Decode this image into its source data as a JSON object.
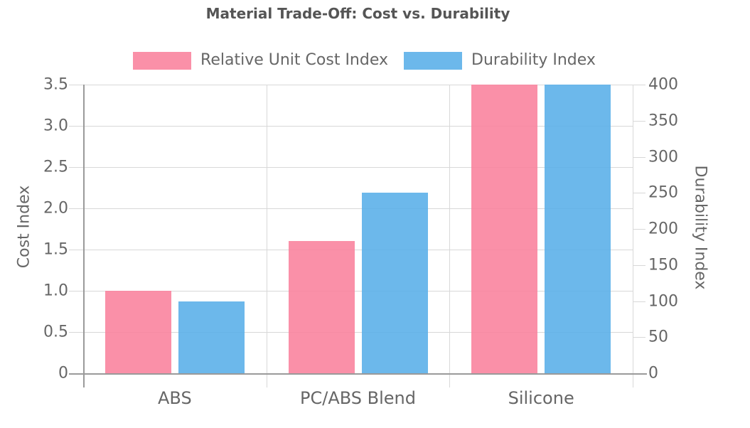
{
  "chart_data": {
    "type": "bar",
    "title": "Material Trade-Off: Cost vs. Durability",
    "categories": [
      "ABS",
      "PC/ABS Blend",
      "Silicone"
    ],
    "bar_opacity": 0.9,
    "series": [
      {
        "name": "Relative Unit Cost Index",
        "axis": "left",
        "color": "#fa849e",
        "values": [
          1.0,
          1.6,
          3.5
        ]
      },
      {
        "name": "Durability Index",
        "axis": "right",
        "color": "#5cb0e9",
        "values": [
          100,
          250,
          400
        ]
      }
    ],
    "left_axis": {
      "title": "Cost Index",
      "min": 0,
      "max": 3.5,
      "tick_labels": [
        "0",
        "0.5",
        "1.0",
        "1.5",
        "2.0",
        "2.5",
        "3.0",
        "3.5"
      ]
    },
    "right_axis": {
      "title": "Durability Index",
      "min": 0,
      "max": 400,
      "tick_labels": [
        "0",
        "50",
        "100",
        "150",
        "200",
        "250",
        "300",
        "350",
        "400"
      ]
    },
    "grid": true,
    "legend_position": "top"
  },
  "colors": {
    "grid": "#d8d8d8",
    "axis_line": "#9a9a9a",
    "text": "#666666",
    "title_text": "#555555",
    "background": "#ffffff"
  }
}
